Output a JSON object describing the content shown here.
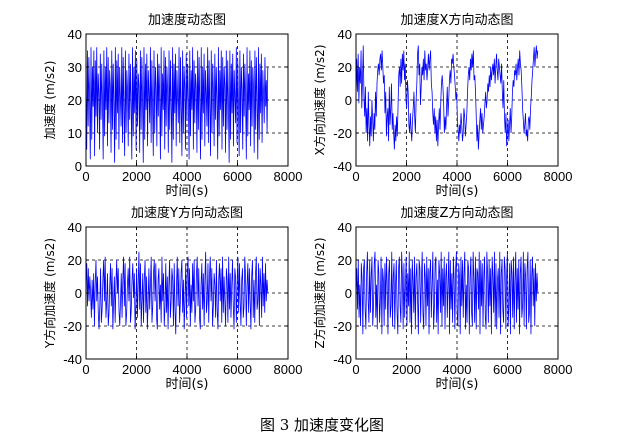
{
  "caption": "图 3  加速度变化图",
  "colors": {
    "line": "#0000ff",
    "axis": "#000000",
    "grid": "#000000"
  },
  "chart_data": [
    {
      "type": "line",
      "title": "加速度动态图",
      "xlabel": "时间(s)",
      "ylabel": "加速度 (m/s2)",
      "xlim": [
        0,
        8000
      ],
      "ylim": [
        0,
        40
      ],
      "xticks": [
        "0",
        "2000",
        "4000",
        "6000",
        "8000"
      ],
      "yticks": [
        "0",
        "10",
        "20",
        "30",
        "40"
      ],
      "grid": true,
      "series": [
        {
          "name": "加速度",
          "x_range": [
            0,
            7200
          ],
          "y_values": [
            25,
            5,
            35,
            12,
            33,
            20,
            2,
            36,
            8,
            30,
            18,
            35,
            3,
            32,
            15,
            36,
            10,
            28,
            22,
            5,
            34,
            14,
            31,
            20,
            2,
            35,
            9,
            30,
            17,
            36,
            6,
            33,
            13,
            29,
            24,
            4,
            35,
            11,
            31,
            19,
            1,
            36,
            8,
            32,
            16,
            34,
            5,
            30,
            21,
            12,
            36,
            7,
            33,
            18,
            3,
            35,
            10,
            29,
            23,
            6,
            34,
            14,
            31,
            19,
            2,
            36,
            9,
            30,
            16,
            35,
            5,
            32,
            12,
            28,
            24,
            4,
            35,
            11,
            33,
            20,
            1,
            36,
            8,
            31,
            17,
            34,
            6,
            29,
            22,
            13,
            36,
            7,
            32,
            18,
            3,
            35,
            10,
            30,
            24,
            6,
            34,
            15,
            31,
            20,
            2,
            36,
            9,
            28,
            17,
            35,
            5,
            33,
            12,
            30,
            23,
            4,
            35,
            11,
            32,
            19,
            1,
            36,
            8,
            31,
            16,
            34,
            6,
            29,
            21,
            13,
            36,
            7,
            33,
            18,
            3,
            35,
            10,
            30,
            24,
            5,
            34,
            14,
            31,
            20,
            2,
            35,
            9,
            29,
            17,
            36,
            5,
            32,
            13,
            28,
            24,
            4,
            35,
            11,
            33,
            19,
            2,
            36,
            8,
            30,
            16,
            34,
            6,
            29,
            22,
            12,
            36,
            7,
            32,
            18,
            3,
            35,
            10,
            31,
            23,
            6,
            34,
            14,
            30,
            20,
            2,
            36,
            9,
            29,
            17,
            35,
            5,
            33,
            12,
            30,
            24,
            4,
            35,
            11,
            32,
            19,
            1,
            35,
            8,
            31,
            16,
            34,
            6,
            29,
            21,
            13,
            36,
            7,
            32,
            18,
            3,
            35,
            10,
            30,
            23,
            5,
            34,
            15,
            31,
            20,
            2,
            36,
            9,
            28,
            17,
            35,
            6,
            32,
            12,
            30,
            24,
            4,
            35,
            11,
            33,
            20,
            2,
            36,
            8,
            31,
            16,
            34,
            7,
            29,
            22,
            13,
            33,
            18,
            26,
            10,
            30
          ]
        }
      ]
    },
    {
      "type": "line",
      "title": "加速度X方向动态图",
      "xlabel": "时间(s)",
      "ylabel": "X方向加速度 (m/s2)",
      "xlim": [
        0,
        8000
      ],
      "ylim": [
        -40,
        40
      ],
      "xticks": [
        "0",
        "2000",
        "4000",
        "6000",
        "8000"
      ],
      "yticks": [
        "-40",
        "-20",
        "0",
        "20",
        "40"
      ],
      "grid": true,
      "series": [
        {
          "name": "X",
          "x_range": [
            0,
            7200
          ],
          "y_values": [
            0,
            25,
            5,
            28,
            -2,
            20,
            10,
            30,
            -5,
            12,
            33,
            2,
            -10,
            8,
            -20,
            -5,
            -25,
            5,
            -15,
            -28,
            -10,
            -22,
            0,
            -12,
            -25,
            -8,
            -18,
            5,
            -10,
            10,
            18,
            22,
            15,
            25,
            28,
            18,
            30,
            20,
            10,
            15,
            -8,
            5,
            -22,
            -10,
            -5,
            -25,
            8,
            -15,
            -5,
            10,
            -18,
            -8,
            -20,
            -30,
            -15,
            -25,
            -10,
            -22,
            -5,
            15,
            20,
            8,
            25,
            10,
            28,
            18,
            30,
            12,
            22,
            0,
            -5,
            12,
            5,
            -15,
            -20,
            -8,
            -18,
            -25,
            -12,
            -5,
            5,
            -10,
            -20,
            0,
            10,
            28,
            33,
            15,
            22,
            -3,
            8,
            20,
            15,
            25,
            12,
            30,
            18,
            22,
            12,
            20,
            28,
            18,
            25,
            30,
            10,
            5,
            -8,
            -15,
            -5,
            -20,
            -10,
            -25,
            -12,
            -28,
            -15,
            -5,
            -18,
            -2,
            10,
            15,
            8,
            -2,
            -20,
            -10,
            -18,
            -5,
            8,
            -10,
            0,
            12,
            18,
            10,
            25,
            22,
            28,
            20,
            15,
            8,
            0,
            5,
            -12,
            -18,
            -25,
            -15,
            -20,
            -8,
            -15,
            -25,
            -20,
            -5,
            -10,
            -22,
            -15,
            -8,
            5,
            15,
            20,
            12,
            25,
            18,
            28,
            20,
            30,
            12,
            15,
            5,
            -10,
            -25,
            -15,
            -30,
            -20,
            -12,
            -5,
            -18,
            -8,
            -20,
            -15,
            -10,
            -2,
            5,
            -5,
            0,
            10,
            5,
            15,
            8,
            20,
            12,
            18,
            22,
            15,
            25,
            10,
            20,
            28,
            18,
            12,
            25,
            20,
            15,
            10,
            22,
            5,
            -5,
            12,
            -10,
            -20,
            -8,
            -28,
            -18,
            -12,
            -25,
            -15,
            -5,
            -20,
            -10,
            5,
            12,
            8,
            18,
            15,
            22,
            12,
            20,
            25,
            15,
            30,
            22,
            18,
            8,
            -5,
            -12,
            -20,
            -15,
            -8,
            -22,
            -18,
            -25,
            -12,
            -10,
            -18,
            -5,
            2,
            12,
            18,
            25,
            32,
            20,
            28,
            33,
            25,
            30
          ]
        }
      ]
    },
    {
      "type": "line",
      "title": "加速度Y方向动态图",
      "xlabel": "时间(s)",
      "ylabel": "Y方向加速度 (m/s2)",
      "xlim": [
        0,
        8000
      ],
      "ylim": [
        -40,
        40
      ],
      "xticks": [
        "0",
        "2000",
        "4000",
        "6000",
        "8000"
      ],
      "yticks": [
        "-40",
        "-20",
        "0",
        "20",
        "40"
      ],
      "grid": true,
      "series": [
        {
          "name": "Y",
          "x_range": [
            0,
            7200
          ],
          "y_values": [
            5,
            18,
            -8,
            15,
            -5,
            10,
            0,
            -15,
            8,
            -10,
            12,
            -20,
            5,
            20,
            -5,
            10,
            -12,
            -22,
            -8,
            15,
            -18,
            -10,
            8,
            20,
            -5,
            22,
            -15,
            -5,
            12,
            -20,
            -12,
            5,
            18,
            -8,
            15,
            -22,
            -5,
            10,
            -18,
            5,
            20,
            0,
            15,
            -10,
            -20,
            -5,
            12,
            -15,
            8,
            22,
            -8,
            18,
            -20,
            -12,
            5,
            15,
            -5,
            22,
            -18,
            -10,
            8,
            18,
            -3,
            12,
            -22,
            -8,
            15,
            -15,
            5,
            25,
            -10,
            18,
            -20,
            -5,
            12,
            -18,
            8,
            20,
            -12,
            10,
            -22,
            -5,
            15,
            -10,
            5,
            22,
            -18,
            -8,
            12,
            20,
            -5,
            18,
            -15,
            -22,
            8,
            15,
            -10,
            5,
            -18,
            22,
            -5,
            12,
            -20,
            -8,
            18,
            -12,
            10,
            -22,
            5,
            20,
            -15,
            -5,
            15,
            8,
            -20,
            18,
            -10,
            -25,
            5,
            22,
            -8,
            15,
            -18,
            -5,
            12,
            20,
            -12,
            8,
            -22,
            -5,
            18,
            -15,
            10,
            22,
            -8,
            15,
            -20,
            5,
            -12,
            18,
            -5,
            20,
            -18,
            -10,
            12,
            22,
            -8,
            15,
            -15,
            -22,
            5,
            18,
            -10,
            12,
            -20,
            8,
            25,
            -12,
            -5,
            18,
            -18,
            10,
            22,
            -5,
            15,
            -20,
            -8,
            12,
            5,
            -15,
            20,
            -10,
            -22,
            8,
            18,
            -5,
            15,
            -18,
            22,
            -12,
            10,
            -5,
            -20,
            15,
            8,
            -18,
            22,
            -10,
            12,
            -15,
            5,
            20,
            -8,
            -22,
            15,
            10,
            -18,
            5,
            22,
            -12,
            18,
            -5,
            -20,
            8,
            15,
            -15,
            -8,
            22,
            10,
            -20,
            5,
            18,
            -12,
            15,
            -5,
            -22,
            10,
            20,
            -15,
            8,
            -18,
            12,
            22,
            -10,
            -5,
            18,
            -20,
            15,
            5,
            -15,
            22,
            -8,
            12,
            -12,
            18,
            -5,
            8,
            0
          ]
        }
      ]
    },
    {
      "type": "line",
      "title": "加速度Z方向动态图",
      "xlabel": "时间(s)",
      "ylabel": "Z方向加速度 (m/s2)",
      "xlim": [
        0,
        8000
      ],
      "ylim": [
        -40,
        40
      ],
      "xticks": [
        "0",
        "2000",
        "4000",
        "6000",
        "8000"
      ],
      "yticks": [
        "-40",
        "-20",
        "0",
        "20",
        "40"
      ],
      "grid": true,
      "series": [
        {
          "name": "Z",
          "x_range": [
            0,
            7200
          ],
          "y_values": [
            0,
            15,
            -10,
            20,
            -15,
            5,
            -20,
            18,
            8,
            -25,
            15,
            20,
            -10,
            -22,
            12,
            25,
            -5,
            -18,
            20,
            -12,
            10,
            22,
            -20,
            -8,
            18,
            25,
            -15,
            5,
            -22,
            20,
            12,
            -18,
            -5,
            22,
            -25,
            15,
            8,
            -20,
            18,
            -10,
            22,
            5,
            -25,
            12,
            20,
            -15,
            -8,
            25,
            -20,
            10,
            18,
            -22,
            5,
            20,
            -12,
            -25,
            15,
            22,
            -8,
            -18,
            25,
            10,
            -22,
            18,
            -15,
            5,
            22,
            -20,
            12,
            -8,
            25,
            -18,
            15,
            -25,
            20,
            8,
            -12,
            22,
            -22,
            10,
            18,
            -5,
            -25,
            20,
            15,
            -18,
            8,
            25,
            -12,
            -22,
            18,
            10,
            -20,
            22,
            -8,
            15,
            -25,
            12,
            20,
            -15,
            5,
            25,
            -22,
            -10,
            18,
            22,
            -18,
            8,
            -25,
            20,
            12,
            -12,
            25,
            -20,
            15,
            -8,
            22,
            -22,
            10,
            18,
            -15,
            5,
            25,
            -25,
            20,
            -10,
            12,
            -18,
            22,
            8,
            -22,
            15,
            25,
            -12,
            -20,
            18,
            10,
            -25,
            22,
            -8,
            20,
            -15,
            12,
            25,
            -22,
            5,
            -18,
            20,
            15,
            -25,
            10,
            22,
            -12,
            -20,
            25,
            8,
            -18,
            22,
            -22,
            15,
            12,
            -10,
            25,
            -25,
            20,
            -8,
            18,
            -20,
            10,
            22,
            -15,
            -22,
            25,
            12,
            -18,
            20,
            -8,
            15,
            -25,
            22,
            10,
            -12,
            25,
            -20,
            18,
            -22,
            8,
            15,
            -15,
            25,
            -25,
            12,
            20,
            -10,
            -18,
            22,
            15,
            -22,
            10,
            25,
            -20,
            -8,
            18,
            -25,
            20,
            12,
            -15,
            22,
            -22,
            8,
            25,
            -18,
            15,
            -10,
            20,
            -25,
            12,
            22,
            -15,
            -8,
            25,
            -20,
            18,
            10,
            -22,
            15,
            25,
            -18,
            -12,
            20,
            -25,
            10,
            22,
            -8,
            15,
            -20,
            18,
            -5,
            12,
            0
          ]
        }
      ]
    }
  ]
}
